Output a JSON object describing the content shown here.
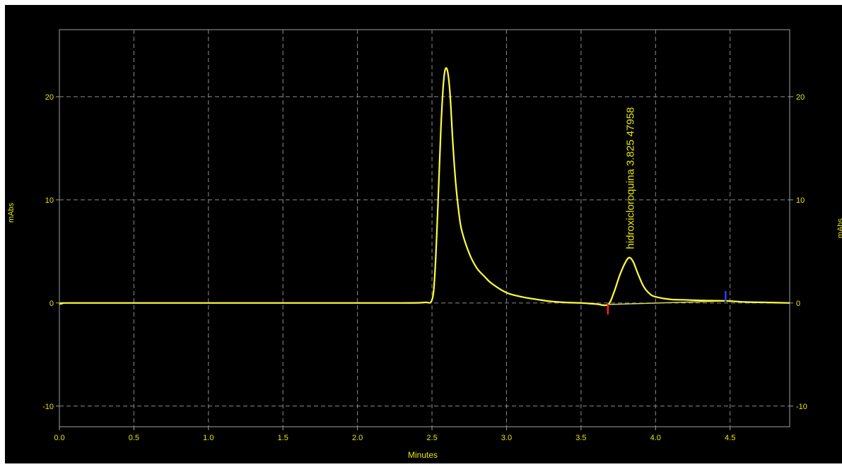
{
  "chart_data": {
    "type": "line",
    "title": "",
    "xlabel": "Minutes",
    "ylabel_left": "mAbs",
    "ylabel_right": "mAbs",
    "xlim": [
      0.0,
      4.9
    ],
    "ylim": [
      -12,
      26.5
    ],
    "x_ticks": [
      0.0,
      0.5,
      1.0,
      1.5,
      2.0,
      2.5,
      3.0,
      3.5,
      4.0,
      4.5
    ],
    "x_tick_labels": [
      "0.0",
      "0.5",
      "1.0",
      "1.5",
      "2.0",
      "2.5",
      "3.0",
      "3.5",
      "4.0",
      "4.5"
    ],
    "y_ticks": [
      -10,
      0,
      10,
      20
    ],
    "y_tick_labels": [
      "-10",
      "0",
      "10",
      "20"
    ],
    "grid": true,
    "colors": {
      "background": "#000000",
      "trace": "#ffff40",
      "text": "#e8e800",
      "grid": "#8c8c8c",
      "axis": "#a0a0a0",
      "baseline": "#d8d860",
      "peak_start_marker": "#ff2020",
      "peak_end_marker": "#3040ff"
    },
    "series": [
      {
        "x": [
          0.0,
          0.02,
          0.05,
          0.5,
          1.0,
          1.5,
          2.0,
          2.3,
          2.45,
          2.5,
          2.52,
          2.54,
          2.56,
          2.58,
          2.6,
          2.62,
          2.64,
          2.66,
          2.68,
          2.7,
          2.75,
          2.8,
          2.85,
          2.9,
          3.0,
          3.1,
          3.2,
          3.3,
          3.4,
          3.5,
          3.6,
          3.68,
          3.72,
          3.76,
          3.8,
          3.825,
          3.85,
          3.88,
          3.92,
          3.96,
          4.0,
          4.1,
          4.2,
          4.3,
          4.47,
          4.6,
          4.75,
          4.9
        ],
        "y": [
          -0.1,
          -0.05,
          0.0,
          0.0,
          0.0,
          0.0,
          0.0,
          0.0,
          0.05,
          0.3,
          3.0,
          9.5,
          17.0,
          21.8,
          22.7,
          20.5,
          15.5,
          11.5,
          8.8,
          7.0,
          4.8,
          3.4,
          2.6,
          1.9,
          1.0,
          0.6,
          0.35,
          0.15,
          0.05,
          0.0,
          -0.1,
          -0.15,
          1.0,
          2.7,
          4.0,
          4.4,
          4.0,
          2.9,
          1.6,
          0.9,
          0.6,
          0.35,
          0.3,
          0.25,
          0.2,
          0.1,
          0.05,
          0.0
        ]
      }
    ],
    "integration_baseline": {
      "x": [
        3.68,
        4.47
      ],
      "y": [
        -0.15,
        0.2
      ]
    },
    "peak_markers": {
      "start_x": 3.68,
      "end_x": 4.47
    },
    "annotations": [
      {
        "text": "hidroxicloroquina  3.825  47958",
        "x": 3.825,
        "y": 4.4
      }
    ]
  }
}
